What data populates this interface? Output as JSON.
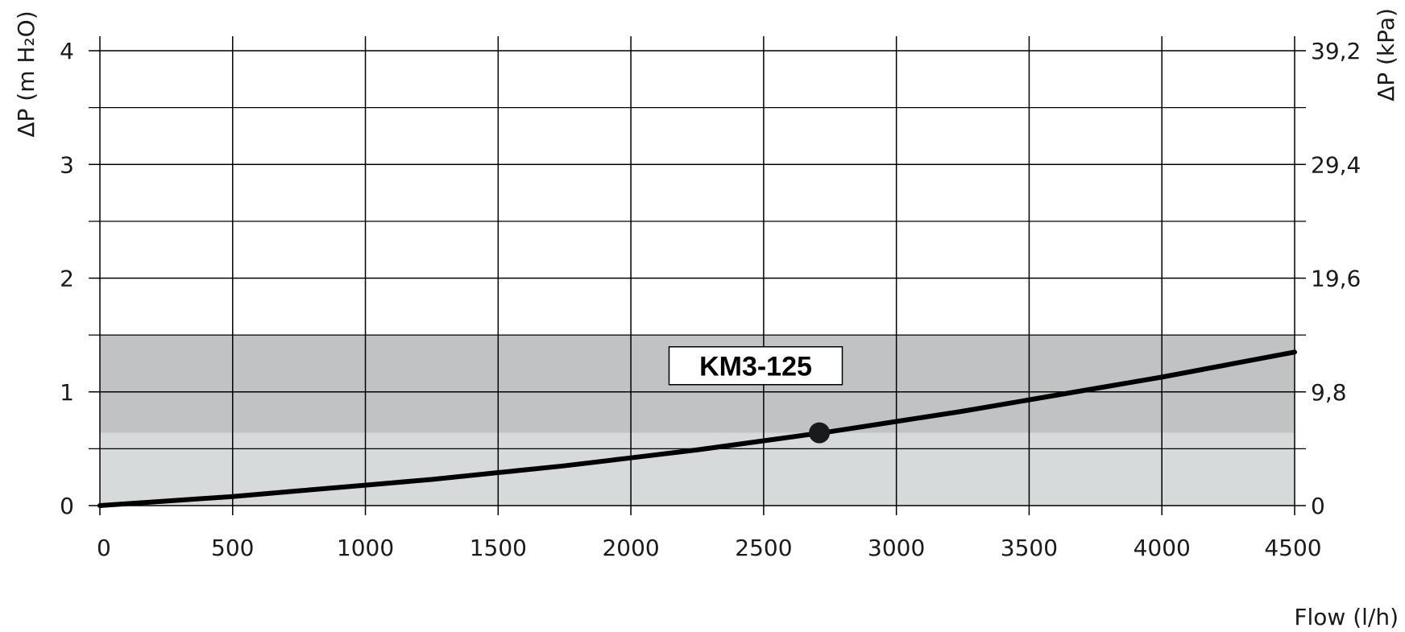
{
  "chart_data": {
    "type": "line",
    "xlabel": "Flow (l/h)",
    "ylabel": "ΔP (m H₂O)",
    "ylabel_right": "ΔP (kPa)",
    "xlim": [
      0,
      4500
    ],
    "ylim": [
      0,
      4
    ],
    "x_ticks": [
      "0",
      "500",
      "1000",
      "1500",
      "2000",
      "2500",
      "3000",
      "3500",
      "4000",
      "4500"
    ],
    "y_ticks": [
      "0",
      "1",
      "2",
      "3",
      "4"
    ],
    "y_ticks_right": [
      "0",
      "9,8",
      "19,6",
      "29,4",
      "39,2"
    ],
    "grid": true,
    "bands": [
      {
        "y_from": 0,
        "y_to": 0.64,
        "color": "#d6dadb"
      },
      {
        "y_from": 0.64,
        "y_to": 1.5,
        "color": "#c0c2c4"
      }
    ],
    "series": [
      {
        "name": "KM3-125",
        "color": "#000000",
        "x": [
          0,
          250,
          500,
          750,
          1000,
          1250,
          1500,
          1750,
          2000,
          2250,
          2500,
          2750,
          3000,
          3250,
          3500,
          3750,
          4000,
          4250,
          4500
        ],
        "y": [
          0.0,
          0.04,
          0.08,
          0.13,
          0.18,
          0.23,
          0.29,
          0.35,
          0.42,
          0.49,
          0.57,
          0.65,
          0.74,
          0.83,
          0.93,
          1.03,
          1.13,
          1.24,
          1.35
        ]
      }
    ],
    "marker": {
      "x": 2710,
      "y": 0.64
    },
    "curve_label": {
      "text": "KM3-125",
      "x": 2470,
      "y": 1.23
    }
  }
}
